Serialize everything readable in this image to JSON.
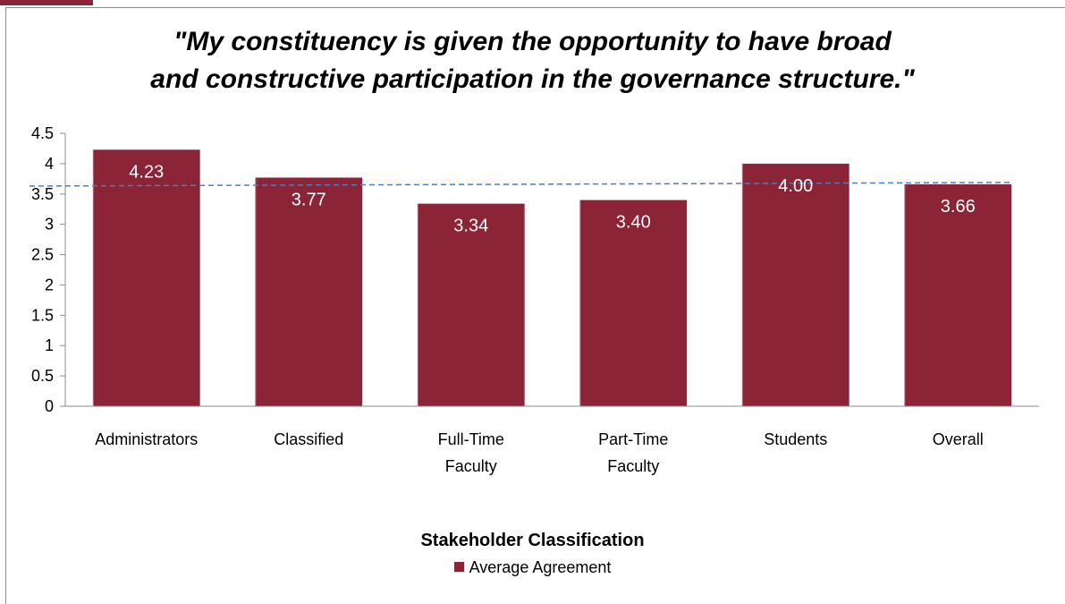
{
  "chart_data": {
    "type": "bar",
    "title": [
      "\"My constituency is given the opportunity to have broad",
      "and constructive participation in the governance structure.\""
    ],
    "categories": [
      [
        "Administrators"
      ],
      [
        "Classified"
      ],
      [
        "Full-Time",
        "Faculty"
      ],
      [
        "Part-Time",
        "Faculty"
      ],
      [
        "Students"
      ],
      [
        "Overall"
      ]
    ],
    "series": [
      {
        "name": "Average Agreement",
        "values": [
          4.23,
          3.77,
          3.34,
          3.4,
          4.0,
          3.66
        ]
      }
    ],
    "data_labels": [
      "4.23",
      "3.77",
      "3.34",
      "3.40",
      "4.00",
      "3.66"
    ],
    "reference_line": 3.66,
    "y_ticks": [
      "0",
      "0.5",
      "1",
      "1.5",
      "2",
      "2.5",
      "3",
      "3.5",
      "4",
      "4.5"
    ],
    "ylim": [
      0,
      4.5
    ],
    "xlabel": "Stakeholder Classification",
    "ylabel": "",
    "legend_position": "bottom",
    "colors": {
      "bar": "#8b2436",
      "reference_line": "#4a7fc1"
    }
  }
}
